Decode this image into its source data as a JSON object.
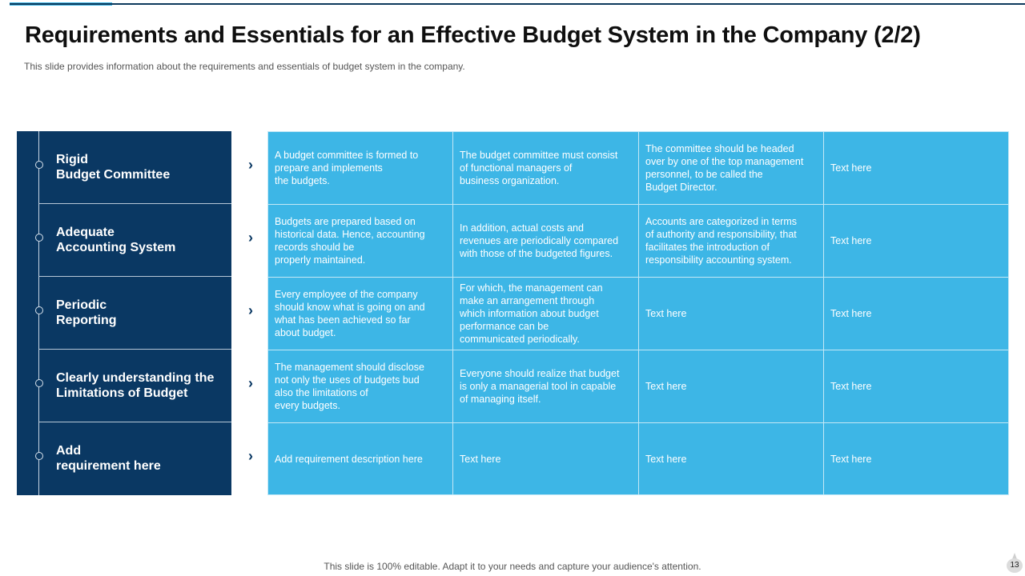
{
  "slide": {
    "title": "Requirements and Essentials for an Effective Budget System in the Company (2/2)",
    "subtitle": "This slide provides  information  about the requirements  and essentials of budget system in the company.",
    "footer": "This slide is 100% editable. Adapt it to your needs and capture your audience's attention.",
    "page_number": "13"
  },
  "requirements": [
    {
      "label": "Rigid\nBudget Committee"
    },
    {
      "label": "Adequate\nAccounting System"
    },
    {
      "label": "Periodic\nReporting"
    },
    {
      "label": "Clearly understanding the\nLimitations of Budget"
    },
    {
      "label": "Add\nrequirement here"
    }
  ],
  "table": {
    "rows": [
      [
        "A budget committee is formed to\nprepare  and implements\nthe budgets.",
        "The budget committee must consist\nof functional managers  of\nbusiness organization.",
        "The committee should be headed\nover  by one of the top management\npersonnel, to be called the\nBudget Director.",
        "Text here"
      ],
      [
        "Budgets are prepared  based on\nhistorical data. Hence, accounting\nrecords should be\nproperly  maintained.",
        "In addition, actual costs and\nrevenues  are periodically compared\nwith those of the budgeted figures.",
        "Accounts are categorized in terms\nof authority and responsibility, that\nfacilitates the introduction of\nresponsibility accounting system.",
        "Text here"
      ],
      [
        "Every  employee of the company\nshould know what is going on and\nwhat has been achieved  so far\nabout budget.",
        "For which, the management  can\nmake an arrangement  through\nwhich information  about budget\nperformance  can be\ncommunicated periodically.",
        "Text here",
        "Text here"
      ],
      [
        "The management  should disclose\nnot only the uses of budgets bud\nalso the limitations of\nevery  budgets.",
        "Everyone  should realize that budget\nis only a managerial  tool in capable\nof managing itself.",
        "Text here",
        "Text here"
      ],
      [
        "Add requirement  description here",
        "Text here",
        "Text here",
        "Text here"
      ]
    ]
  },
  "colors": {
    "dark_navy": "#0a3863",
    "cell_blue": "#3db6e6",
    "accent": "#3cb2e3"
  }
}
